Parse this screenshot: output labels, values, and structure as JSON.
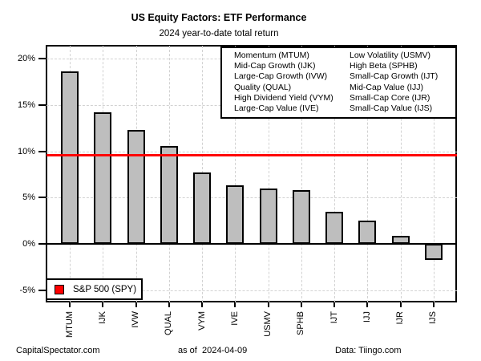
{
  "title": "US Equity Factors: ETF Performance",
  "subtitle": "2024 year-to-date total return",
  "footer": {
    "left": "CapitalSpectator.com",
    "center": "as of  2024-04-09",
    "right": "Data: Tiingo.com"
  },
  "benchmark_legend_label": "S&P 500 (SPY)",
  "factor_legend": {
    "col1": [
      "Momentum (MTUM)",
      "Mid-Cap Growth (IJK)",
      "Large-Cap Growth (IVW)",
      "Quality (QUAL)",
      "High Dividend Yield (VYM)",
      "Large-Cap Value (IVE)"
    ],
    "col2": [
      "Low Volatility (USMV)",
      "High Beta (SPHB)",
      "Small-Cap Growth (IJT)",
      "Mid-Cap Value (IJJ)",
      "Small-Cap Core (IJR)",
      "Small-Cap Value (IJS)"
    ]
  },
  "chart_data": {
    "type": "bar",
    "title": "US Equity Factors: ETF Performance",
    "subtitle": "2024 year-to-date total return",
    "categories": [
      "MTUM",
      "IJK",
      "IVW",
      "QUAL",
      "VYM",
      "IVE",
      "USMV",
      "SPHB",
      "IJT",
      "IJJ",
      "IJR",
      "IJS"
    ],
    "values": [
      18.6,
      14.2,
      12.3,
      10.6,
      7.7,
      6.3,
      6.0,
      5.8,
      3.5,
      2.5,
      0.9,
      -1.75
    ],
    "benchmark_line": {
      "label": "S&P 500 (SPY)",
      "value": 9.6,
      "color": "#ff0000"
    },
    "ylabel": "",
    "xlabel": "",
    "ylim": [
      -6.3,
      21.4
    ],
    "yticks": [
      -5,
      0,
      5,
      10,
      15,
      20
    ],
    "ytick_labels": [
      "-5%",
      "0%",
      "5%",
      "10%",
      "15%",
      "20%"
    ],
    "grid": true,
    "legend_position": "top-right",
    "bar_color": "#bebebe",
    "bar_border_color": "#000000",
    "grid_color": "#d2d2d2"
  }
}
